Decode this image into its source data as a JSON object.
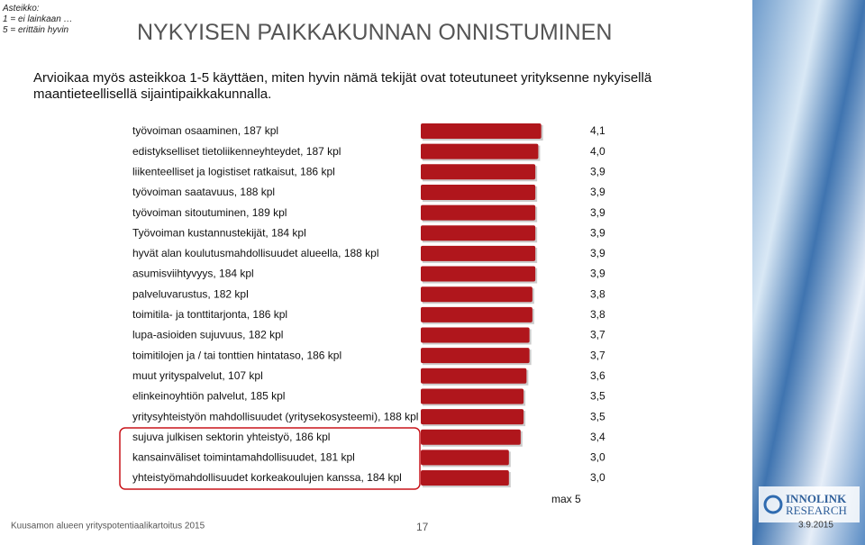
{
  "scale_note": [
    "Asteikko:",
    "1 = ei lainkaan …",
    "5 = erittäin hyvin"
  ],
  "chart_data": {
    "type": "hbar",
    "title": "NYKYISEN PAIKKAKUNNAN ONNISTUMINEN",
    "subtitle": "Arvioikaa myös asteikkoa 1-5 käyttäen, miten hyvin nämä tekijät ovat toteutuneet yrityksenne nykyisellä maantieteellisellä sijaintipaikkakunnalla.",
    "categories": [
      "työvoiman osaaminen, 187 kpl",
      "edistykselliset tietoliikenneyhteydet, 187 kpl",
      "liikenteelliset ja logistiset ratkaisut, 186 kpl",
      "työvoiman saatavuus, 188 kpl",
      "työvoiman sitoutuminen, 189 kpl",
      "Työvoiman kustannustekijät, 184 kpl",
      "hyvät alan koulutusmahdollisuudet alueella, 188 kpl",
      "asumisviihtyvyys, 184 kpl",
      "palveluvarustus, 182 kpl",
      "toimitila- ja tonttitarjonta, 186 kpl",
      "lupa-asioiden sujuvuus, 182 kpl",
      "toimitilojen ja / tai tonttien hintataso, 186 kpl",
      "muut yrityspalvelut, 107 kpl",
      "elinkeinoyhtiön palvelut, 185 kpl",
      "yritysyhteistyön mahdollisuudet (yritysekosysteemi), 188 kpl",
      "sujuva julkisen sektorin yhteistyö, 186 kpl",
      "kansainväliset toimintamahdollisuudet, 181 kpl",
      "yhteistyömahdollisuudet korkeakoulujen kanssa, 184 kpl"
    ],
    "values": [
      4.1,
      4.0,
      3.9,
      3.9,
      3.9,
      3.9,
      3.9,
      3.9,
      3.8,
      3.8,
      3.7,
      3.7,
      3.6,
      3.5,
      3.5,
      3.4,
      3.0,
      3.0
    ],
    "value_labels": [
      "4,1",
      "4,0",
      "3,9",
      "3,9",
      "3,9",
      "3,9",
      "3,9",
      "3,9",
      "3,8",
      "3,8",
      "3,7",
      "3,7",
      "3,6",
      "3,5",
      "3,5",
      "3,4",
      "3,0",
      "3,0"
    ],
    "color": "#b0161c",
    "xlim": [
      0,
      5
    ],
    "max_label": "max 5"
  },
  "footer": {
    "source": "Kuusamon alueen yrityspotentiaalikartoitus 2015",
    "page": "17",
    "date": "3.9.2015",
    "logo_top": "INNOLINK",
    "logo_bottom": "RESEARCH"
  }
}
